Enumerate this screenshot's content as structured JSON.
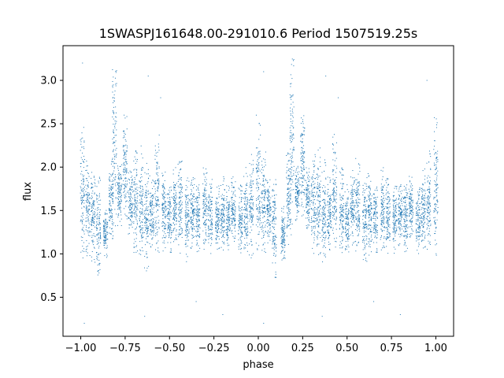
{
  "chart_data": {
    "type": "scatter",
    "title": "1SWASPJ161648.00-291010.6 Period 1507519.25s",
    "xlabel": "phase",
    "ylabel": "flux",
    "xlim": [
      -1.1,
      1.1
    ],
    "ylim": [
      0.05,
      3.4
    ],
    "xticks": [
      -1.0,
      -0.75,
      -0.5,
      -0.25,
      0.0,
      0.25,
      0.5,
      0.75,
      1.0
    ],
    "xtick_labels": [
      "−1.00",
      "−0.75",
      "−0.50",
      "−0.25",
      "0.00",
      "0.25",
      "0.50",
      "0.75",
      "1.00"
    ],
    "yticks": [
      0.5,
      1.0,
      1.5,
      2.0,
      2.5,
      3.0
    ],
    "ytick_labels": [
      "0.5",
      "1.0",
      "1.5",
      "2.0",
      "2.5",
      "3.0"
    ],
    "grid": false,
    "marker_color": "#1f77b4",
    "series": [
      {
        "clusters": [
          {
            "x": -0.99,
            "y_low": 0.8,
            "y_high": 2.6
          },
          {
            "x": -0.96,
            "y_low": 0.95,
            "y_high": 2.1
          },
          {
            "x": -0.93,
            "y_low": 0.9,
            "y_high": 2.0
          },
          {
            "x": -0.9,
            "y_low": 0.7,
            "y_high": 1.9
          },
          {
            "x": -0.86,
            "y_low": 0.9,
            "y_high": 1.55
          },
          {
            "x": -0.83,
            "y_low": 1.1,
            "y_high": 2.1
          },
          {
            "x": -0.81,
            "y_low": 1.2,
            "y_high": 3.3
          },
          {
            "x": -0.78,
            "y_low": 1.3,
            "y_high": 2.1
          },
          {
            "x": -0.75,
            "y_low": 1.4,
            "y_high": 2.6
          },
          {
            "x": -0.72,
            "y_low": 1.2,
            "y_high": 2.0
          },
          {
            "x": -0.69,
            "y_low": 1.0,
            "y_high": 2.2
          },
          {
            "x": -0.66,
            "y_low": 0.9,
            "y_high": 2.25
          },
          {
            "x": -0.63,
            "y_low": 0.8,
            "y_high": 2.1
          },
          {
            "x": -0.6,
            "y_low": 1.0,
            "y_high": 1.9
          },
          {
            "x": -0.57,
            "y_low": 1.0,
            "y_high": 2.4
          },
          {
            "x": -0.53,
            "y_low": 1.0,
            "y_high": 2.0
          },
          {
            "x": -0.5,
            "y_low": 1.0,
            "y_high": 1.8
          },
          {
            "x": -0.47,
            "y_low": 1.1,
            "y_high": 2.0
          },
          {
            "x": -0.44,
            "y_low": 1.0,
            "y_high": 2.1
          },
          {
            "x": -0.4,
            "y_low": 0.9,
            "y_high": 1.9
          },
          {
            "x": -0.37,
            "y_low": 0.95,
            "y_high": 2.0
          },
          {
            "x": -0.34,
            "y_low": 1.0,
            "y_high": 1.8
          },
          {
            "x": -0.3,
            "y_low": 1.0,
            "y_high": 2.0
          },
          {
            "x": -0.27,
            "y_low": 1.0,
            "y_high": 1.9
          },
          {
            "x": -0.23,
            "y_low": 1.0,
            "y_high": 1.8
          },
          {
            "x": -0.2,
            "y_low": 1.0,
            "y_high": 1.9
          },
          {
            "x": -0.17,
            "y_low": 1.0,
            "y_high": 1.8
          },
          {
            "x": -0.14,
            "y_low": 1.1,
            "y_high": 1.9
          },
          {
            "x": -0.1,
            "y_low": 1.0,
            "y_high": 1.8
          },
          {
            "x": -0.07,
            "y_low": 1.0,
            "y_high": 2.0
          },
          {
            "x": -0.04,
            "y_low": 0.95,
            "y_high": 2.2
          },
          {
            "x": 0.0,
            "y_low": 0.9,
            "y_high": 2.6
          },
          {
            "x": 0.03,
            "y_low": 1.0,
            "y_high": 2.2
          },
          {
            "x": 0.06,
            "y_low": 1.1,
            "y_high": 1.9
          },
          {
            "x": 0.09,
            "y_low": 0.7,
            "y_high": 1.9
          },
          {
            "x": 0.14,
            "y_low": 0.9,
            "y_high": 1.55
          },
          {
            "x": 0.17,
            "y_low": 1.1,
            "y_high": 2.2
          },
          {
            "x": 0.19,
            "y_low": 1.2,
            "y_high": 3.3
          },
          {
            "x": 0.22,
            "y_low": 1.3,
            "y_high": 2.1
          },
          {
            "x": 0.25,
            "y_low": 1.4,
            "y_high": 2.6
          },
          {
            "x": 0.28,
            "y_low": 1.2,
            "y_high": 2.0
          },
          {
            "x": 0.31,
            "y_low": 1.0,
            "y_high": 2.2
          },
          {
            "x": 0.34,
            "y_low": 0.9,
            "y_high": 2.25
          },
          {
            "x": 0.37,
            "y_low": 0.8,
            "y_high": 2.1
          },
          {
            "x": 0.4,
            "y_low": 1.0,
            "y_high": 1.9
          },
          {
            "x": 0.43,
            "y_low": 1.0,
            "y_high": 2.4
          },
          {
            "x": 0.47,
            "y_low": 1.0,
            "y_high": 2.0
          },
          {
            "x": 0.5,
            "y_low": 1.0,
            "y_high": 1.8
          },
          {
            "x": 0.53,
            "y_low": 1.1,
            "y_high": 2.0
          },
          {
            "x": 0.56,
            "y_low": 1.0,
            "y_high": 2.1
          },
          {
            "x": 0.6,
            "y_low": 0.9,
            "y_high": 1.9
          },
          {
            "x": 0.63,
            "y_low": 0.95,
            "y_high": 2.0
          },
          {
            "x": 0.66,
            "y_low": 1.0,
            "y_high": 1.8
          },
          {
            "x": 0.7,
            "y_low": 1.0,
            "y_high": 2.0
          },
          {
            "x": 0.73,
            "y_low": 1.0,
            "y_high": 1.9
          },
          {
            "x": 0.77,
            "y_low": 1.0,
            "y_high": 1.8
          },
          {
            "x": 0.8,
            "y_low": 1.0,
            "y_high": 1.9
          },
          {
            "x": 0.83,
            "y_low": 1.0,
            "y_high": 1.8
          },
          {
            "x": 0.86,
            "y_low": 1.1,
            "y_high": 1.9
          },
          {
            "x": 0.9,
            "y_low": 1.0,
            "y_high": 1.8
          },
          {
            "x": 0.93,
            "y_low": 1.0,
            "y_high": 2.0
          },
          {
            "x": 0.96,
            "y_low": 0.95,
            "y_high": 2.2
          },
          {
            "x": 1.0,
            "y_low": 0.9,
            "y_high": 2.6
          }
        ],
        "outliers": [
          {
            "x": -0.99,
            "y": 3.2
          },
          {
            "x": -0.98,
            "y": 0.2
          },
          {
            "x": -0.64,
            "y": 0.28
          },
          {
            "x": -0.62,
            "y": 3.05
          },
          {
            "x": -0.55,
            "y": 2.8
          },
          {
            "x": -0.35,
            "y": 0.45
          },
          {
            "x": -0.2,
            "y": 0.3
          },
          {
            "x": 0.03,
            "y": 3.1
          },
          {
            "x": 0.03,
            "y": 0.2
          },
          {
            "x": 0.36,
            "y": 0.28
          },
          {
            "x": 0.38,
            "y": 3.05
          },
          {
            "x": 0.45,
            "y": 2.8
          },
          {
            "x": 0.65,
            "y": 0.45
          },
          {
            "x": 0.8,
            "y": 0.3
          },
          {
            "x": 0.95,
            "y": 3.0
          }
        ]
      }
    ]
  }
}
